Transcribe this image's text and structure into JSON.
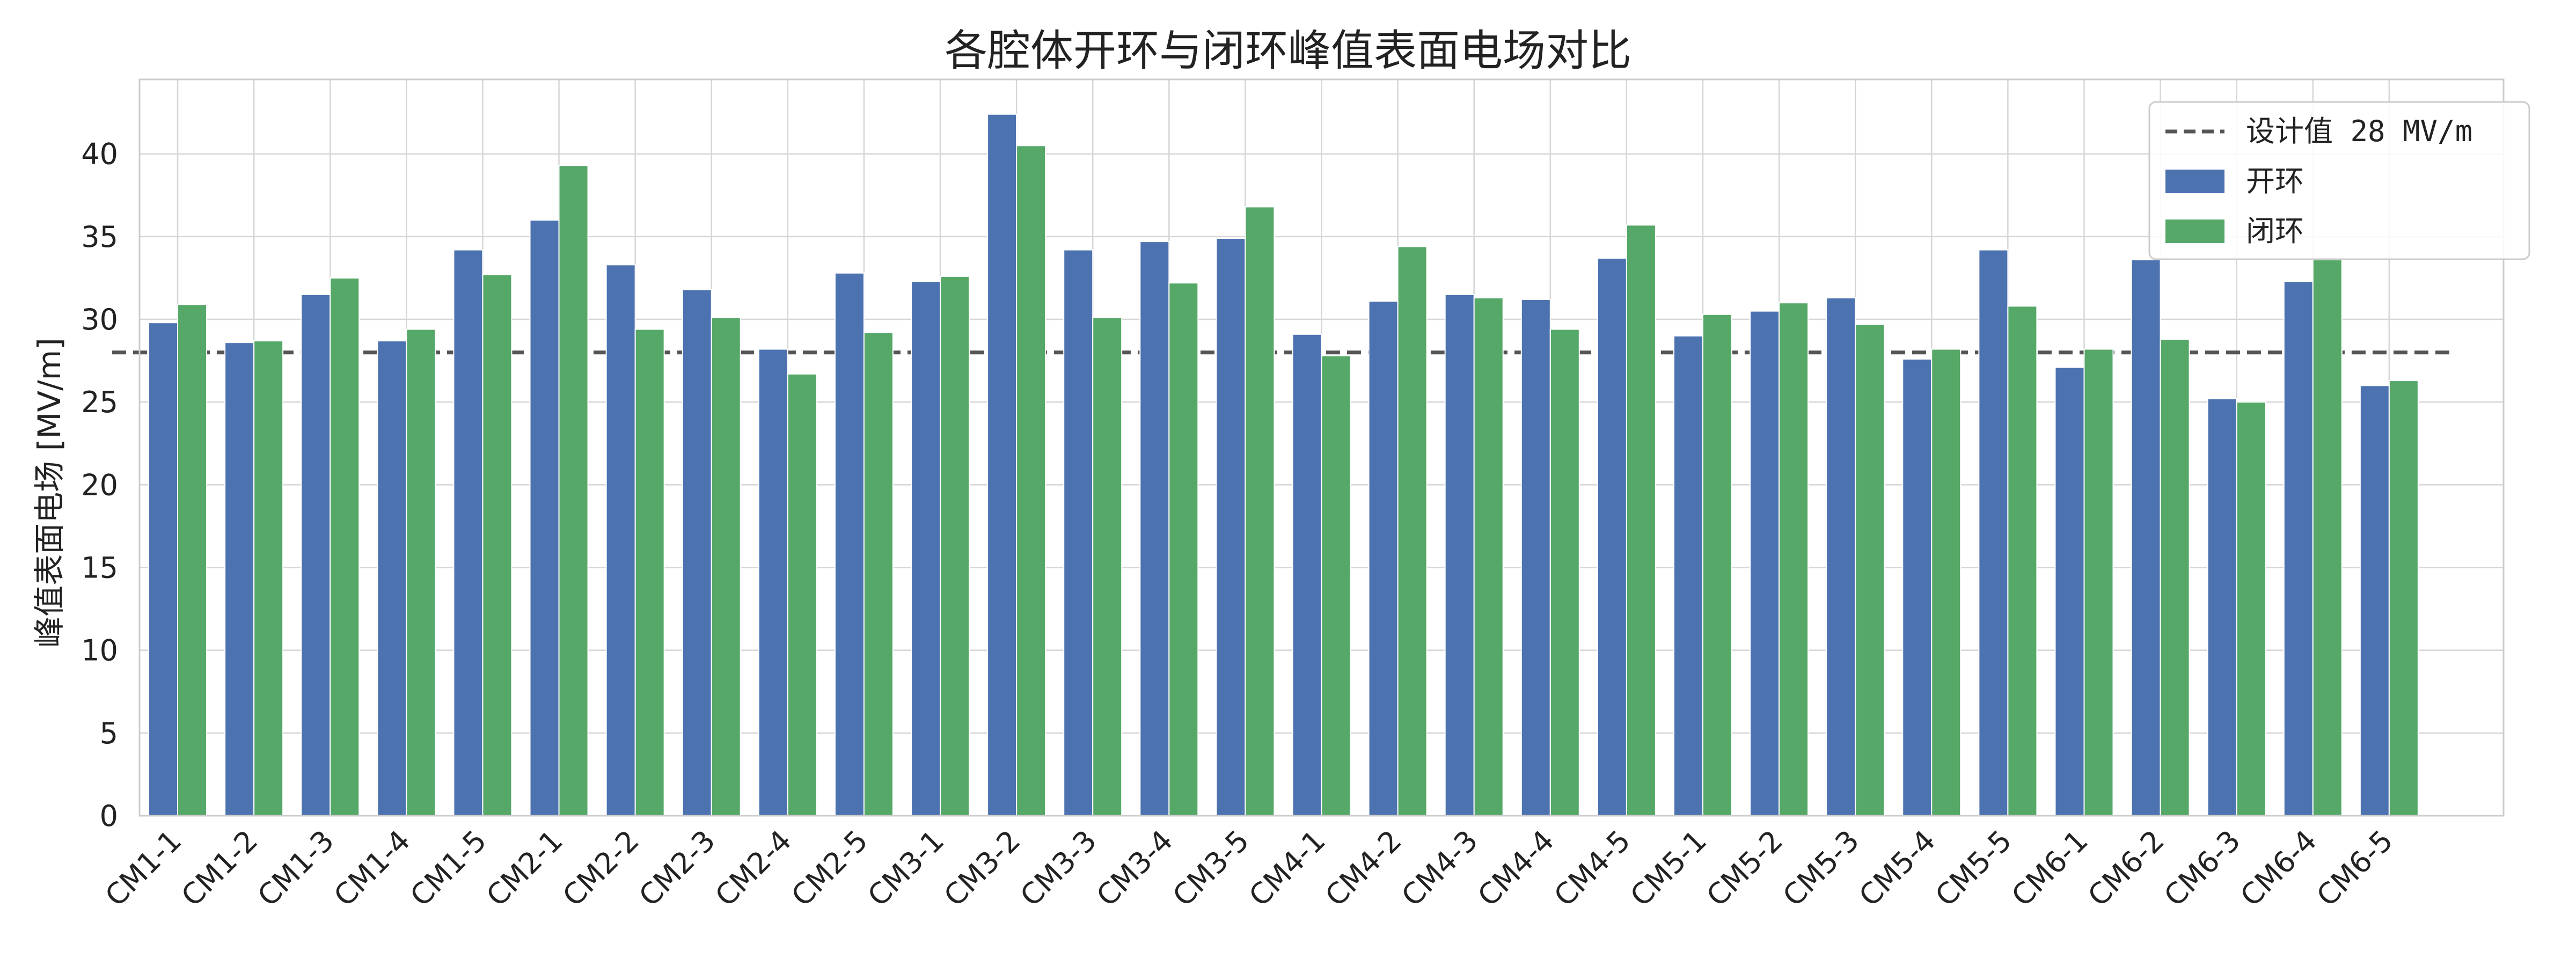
{
  "chart_data": {
    "type": "bar",
    "title": "各腔体开环与闭环峰值表面电场对比",
    "xlabel": "",
    "ylabel": "峰值表面电场 [MV/m]",
    "ylim": [
      0,
      44.5
    ],
    "yticks": [
      0,
      5,
      10,
      15,
      20,
      25,
      30,
      35,
      40
    ],
    "grid": true,
    "legend_position": "top-right",
    "categories": [
      "CM1-1",
      "CM1-2",
      "CM1-3",
      "CM1-4",
      "CM1-5",
      "CM2-1",
      "CM2-2",
      "CM2-3",
      "CM2-4",
      "CM2-5",
      "CM3-1",
      "CM3-2",
      "CM3-3",
      "CM3-4",
      "CM3-5",
      "CM4-1",
      "CM4-2",
      "CM4-3",
      "CM4-4",
      "CM4-5",
      "CM5-1",
      "CM5-2",
      "CM5-3",
      "CM5-4",
      "CM5-5",
      "CM6-1",
      "CM6-2",
      "CM6-3",
      "CM6-4",
      "CM6-5"
    ],
    "series": [
      {
        "name": "开环",
        "color": "#4c72b0",
        "values": [
          29.8,
          28.6,
          31.5,
          28.7,
          34.2,
          36.0,
          33.3,
          31.8,
          28.2,
          32.8,
          32.3,
          42.4,
          34.2,
          34.7,
          34.9,
          29.1,
          31.1,
          31.5,
          31.2,
          33.7,
          29.0,
          30.5,
          31.3,
          27.6,
          34.2,
          27.1,
          33.6,
          25.2,
          32.3,
          26.0
        ]
      },
      {
        "name": "闭环",
        "color": "#55a868",
        "values": [
          30.9,
          28.7,
          32.5,
          29.4,
          32.7,
          39.3,
          29.4,
          30.1,
          26.7,
          29.2,
          32.6,
          40.5,
          30.1,
          32.2,
          36.8,
          27.8,
          34.4,
          31.3,
          29.4,
          35.7,
          30.3,
          31.0,
          29.7,
          28.2,
          30.8,
          28.2,
          28.8,
          25.0,
          33.6,
          26.3
        ]
      }
    ],
    "reference_line": {
      "label": "设计值 28 MV/m",
      "value": 28,
      "color": "#555555",
      "style": "dashed"
    }
  }
}
